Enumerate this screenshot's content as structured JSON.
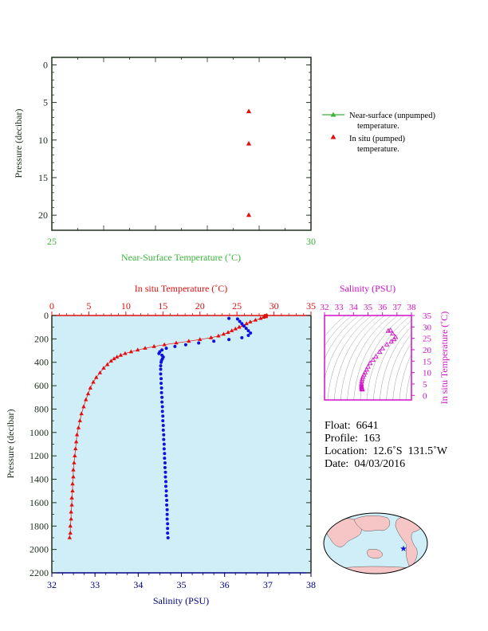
{
  "colors": {
    "green": "#3cb43c",
    "red": "#e01010",
    "blue": "#1010e0",
    "navy": "#000080",
    "magenta": "#d010c8",
    "axis_dark": "#203020",
    "plot_bg": "#d0eef8"
  },
  "chart_data": [
    {
      "type": "scatter",
      "xlabel": "Near-Surface Temperature (˚C)",
      "ylabel": "Pressure (decibar)",
      "xlim": [
        25,
        30
      ],
      "ylim": [
        22,
        -1
      ],
      "x_ticks": [
        "25",
        "30"
      ],
      "y_ticks": [
        "0",
        "5",
        "10",
        "15",
        "20"
      ],
      "series": [
        {
          "name": "Near-surface (unpumped) temperature.",
          "marker": "triangle",
          "color": "#3cb43c",
          "points": []
        },
        {
          "name": "In situ (pumped) temperature.",
          "marker": "triangle",
          "color": "#e01010",
          "points": [
            [
              28.8,
              6.2
            ],
            [
              28.8,
              10.5
            ],
            [
              28.8,
              20.0
            ]
          ]
        }
      ],
      "legend": [
        {
          "line1": "Near-surface (unpumped)",
          "line2": "temperature."
        },
        {
          "line1": "In situ (pumped)",
          "line2": "temperature."
        }
      ],
      "legend_position": "right"
    },
    {
      "type": "line",
      "top_xlabel": "In situ Temperature (˚C)",
      "bottom_xlabel": "Salinity (PSU)",
      "ylabel": "Pressure (decibar)",
      "temp_lim": [
        0,
        35
      ],
      "sal_lim": [
        32,
        38
      ],
      "ylim": [
        2200,
        0
      ],
      "temp_ticks": [
        "0",
        "5",
        "10",
        "15",
        "20",
        "25",
        "30",
        "35"
      ],
      "sal_ticks": [
        "32",
        "33",
        "34",
        "35",
        "36",
        "37",
        "38"
      ],
      "y_ticks": [
        "0",
        "200",
        "400",
        "600",
        "800",
        "1000",
        "1200",
        "1400",
        "1600",
        "1800",
        "2000",
        "2200"
      ],
      "temperature_profile": [
        [
          28.9,
          5
        ],
        [
          28.6,
          15
        ],
        [
          28.2,
          25
        ],
        [
          27.5,
          40
        ],
        [
          26.8,
          55
        ],
        [
          26.3,
          70
        ],
        [
          25.8,
          85
        ],
        [
          25.3,
          100
        ],
        [
          24.8,
          115
        ],
        [
          24.3,
          130
        ],
        [
          23.8,
          145
        ],
        [
          23.2,
          160
        ],
        [
          22.5,
          175
        ],
        [
          21.5,
          190
        ],
        [
          20.0,
          205
        ],
        [
          18.5,
          220
        ],
        [
          16.8,
          235
        ],
        [
          15.2,
          250
        ],
        [
          13.8,
          265
        ],
        [
          12.6,
          280
        ],
        [
          11.6,
          295
        ],
        [
          10.7,
          310
        ],
        [
          9.9,
          325
        ],
        [
          9.3,
          340
        ],
        [
          8.8,
          355
        ],
        [
          8.4,
          370
        ],
        [
          8.0,
          390
        ],
        [
          7.5,
          420
        ],
        [
          7.0,
          450
        ],
        [
          6.5,
          490
        ],
        [
          6.0,
          530
        ],
        [
          5.6,
          570
        ],
        [
          5.2,
          620
        ],
        [
          4.9,
          670
        ],
        [
          4.6,
          720
        ],
        [
          4.3,
          780
        ],
        [
          4.0,
          840
        ],
        [
          3.8,
          900
        ],
        [
          3.6,
          960
        ],
        [
          3.4,
          1020
        ],
        [
          3.3,
          1080
        ],
        [
          3.2,
          1140
        ],
        [
          3.1,
          1200
        ],
        [
          3.0,
          1260
        ],
        [
          2.9,
          1320
        ],
        [
          2.9,
          1380
        ],
        [
          2.8,
          1440
        ],
        [
          2.8,
          1500
        ],
        [
          2.7,
          1560
        ],
        [
          2.7,
          1620
        ],
        [
          2.6,
          1680
        ],
        [
          2.6,
          1740
        ],
        [
          2.5,
          1800
        ],
        [
          2.5,
          1860
        ],
        [
          2.4,
          1900
        ]
      ],
      "salinity_profile": [
        [
          36.1,
          25
        ],
        [
          36.3,
          30
        ],
        [
          36.35,
          50
        ],
        [
          36.4,
          70
        ],
        [
          36.45,
          90
        ],
        [
          36.5,
          110
        ],
        [
          36.55,
          130
        ],
        [
          36.6,
          150
        ],
        [
          36.55,
          170
        ],
        [
          36.4,
          190
        ],
        [
          36.1,
          205
        ],
        [
          35.75,
          220
        ],
        [
          35.4,
          235
        ],
        [
          35.1,
          250
        ],
        [
          34.85,
          265
        ],
        [
          34.65,
          280
        ],
        [
          34.55,
          295
        ],
        [
          34.5,
          310
        ],
        [
          34.48,
          325
        ],
        [
          34.55,
          340
        ],
        [
          34.58,
          355
        ],
        [
          34.56,
          370
        ],
        [
          34.54,
          385
        ],
        [
          34.53,
          400
        ],
        [
          34.52,
          430
        ],
        [
          34.52,
          460
        ],
        [
          34.52,
          500
        ],
        [
          34.53,
          540
        ],
        [
          34.53,
          580
        ],
        [
          34.54,
          620
        ],
        [
          34.54,
          660
        ],
        [
          34.55,
          700
        ],
        [
          34.55,
          740
        ],
        [
          34.56,
          780
        ],
        [
          34.56,
          820
        ],
        [
          34.57,
          860
        ],
        [
          34.57,
          900
        ],
        [
          34.58,
          940
        ],
        [
          34.58,
          980
        ],
        [
          34.59,
          1020
        ],
        [
          34.59,
          1060
        ],
        [
          34.6,
          1100
        ],
        [
          34.6,
          1140
        ],
        [
          34.61,
          1180
        ],
        [
          34.61,
          1220
        ],
        [
          34.62,
          1260
        ],
        [
          34.62,
          1300
        ],
        [
          34.63,
          1340
        ],
        [
          34.63,
          1380
        ],
        [
          34.64,
          1420
        ],
        [
          34.64,
          1460
        ],
        [
          34.65,
          1500
        ],
        [
          34.65,
          1540
        ],
        [
          34.66,
          1580
        ],
        [
          34.66,
          1620
        ],
        [
          34.67,
          1660
        ],
        [
          34.67,
          1700
        ],
        [
          34.67,
          1740
        ],
        [
          34.68,
          1780
        ],
        [
          34.68,
          1820
        ],
        [
          34.68,
          1860
        ],
        [
          34.69,
          1900
        ]
      ]
    },
    {
      "type": "scatter",
      "title": "Salinity (PSU)",
      "ylabel": "In situ Temperature (˚C)",
      "xlim": [
        32,
        38
      ],
      "ylim": [
        -2,
        35
      ],
      "x_ticks": [
        "32",
        "33",
        "34",
        "35",
        "36",
        "37",
        "38"
      ],
      "y_ticks": [
        "0",
        "5",
        "10",
        "15",
        "20",
        "25",
        "30",
        "35"
      ],
      "points": [
        [
          36.55,
          28.5
        ],
        [
          36.4,
          28.2
        ],
        [
          36.7,
          27.0
        ],
        [
          36.9,
          25.5
        ],
        [
          36.8,
          24.5
        ],
        [
          36.6,
          23.5
        ],
        [
          36.3,
          22.2
        ],
        [
          36.0,
          20.5
        ],
        [
          35.8,
          19.0
        ],
        [
          35.55,
          17.0
        ],
        [
          35.35,
          15.5
        ],
        [
          35.15,
          14.0
        ],
        [
          35.0,
          12.5
        ],
        [
          34.9,
          11.2
        ],
        [
          34.8,
          10.0
        ],
        [
          34.72,
          9.0
        ],
        [
          34.65,
          8.0
        ],
        [
          34.6,
          7.0
        ],
        [
          34.57,
          6.0
        ],
        [
          34.55,
          5.0
        ],
        [
          34.55,
          4.2
        ],
        [
          34.56,
          3.6
        ],
        [
          34.57,
          3.2
        ],
        [
          34.58,
          2.9
        ],
        [
          34.59,
          2.7
        ],
        [
          34.6,
          2.5
        ]
      ]
    }
  ],
  "float_info": {
    "float_label": "Float:  6641",
    "profile_label": "Profile:  163",
    "location_label": "Location:  12.6˚S  131.5˚W",
    "date_label": "Date:  04/03/2016"
  },
  "map": {
    "marker": "star",
    "marker_color": "#1010e0"
  }
}
